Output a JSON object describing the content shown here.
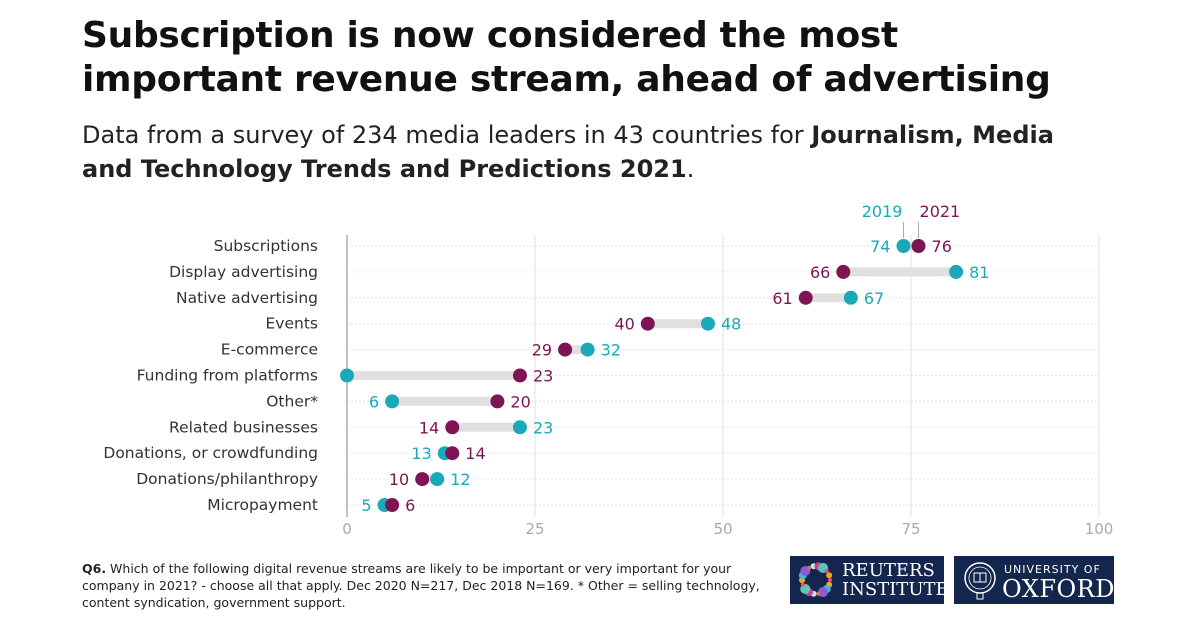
{
  "title": "Subscription is now considered the most important revenue stream, ahead of advertising",
  "subtitle": {
    "text": "Data from a survey of 234 media leaders in 43 countries for ",
    "bold": "Journalism, Media and Technology Trends and Predictions 2021",
    "end": "."
  },
  "chart_data": {
    "type": "dumbbell",
    "categories": [
      "Subscriptions",
      "Display advertising",
      "Native advertising",
      "Events",
      "E-commerce",
      "Funding from platforms",
      "Other*",
      "Related businesses",
      "Donations, or crowdfunding",
      "Donations/philanthropy",
      "Micropayment"
    ],
    "series": [
      {
        "name": "2019",
        "color": "#1aa9b8",
        "values": [
          74,
          81,
          67,
          48,
          32,
          0,
          6,
          23,
          13,
          12,
          5
        ]
      },
      {
        "name": "2021",
        "color": "#7d1454",
        "values": [
          76,
          66,
          61,
          40,
          29,
          23,
          20,
          14,
          14,
          10,
          6
        ]
      }
    ],
    "hidden_labels": {
      "2019": [
        5
      ]
    },
    "xticks": [
      0,
      25,
      50,
      75,
      100
    ],
    "xlim": [
      0,
      100
    ],
    "grid": true,
    "legend": "top-right, labelling first row"
  },
  "footnote": {
    "bold": "Q6.",
    "text": " Which of the following digital revenue streams are likely to be important or very important for your company in 2021? - choose all that apply. Dec 2020 N=217, Dec 2018 N=169. * Other = selling technology, content syndication, government support."
  },
  "logos": {
    "reuters": [
      "REUTERS",
      "INSTITUTE"
    ],
    "oxford": [
      "UNIVERSITY OF",
      "OXFORD"
    ]
  }
}
